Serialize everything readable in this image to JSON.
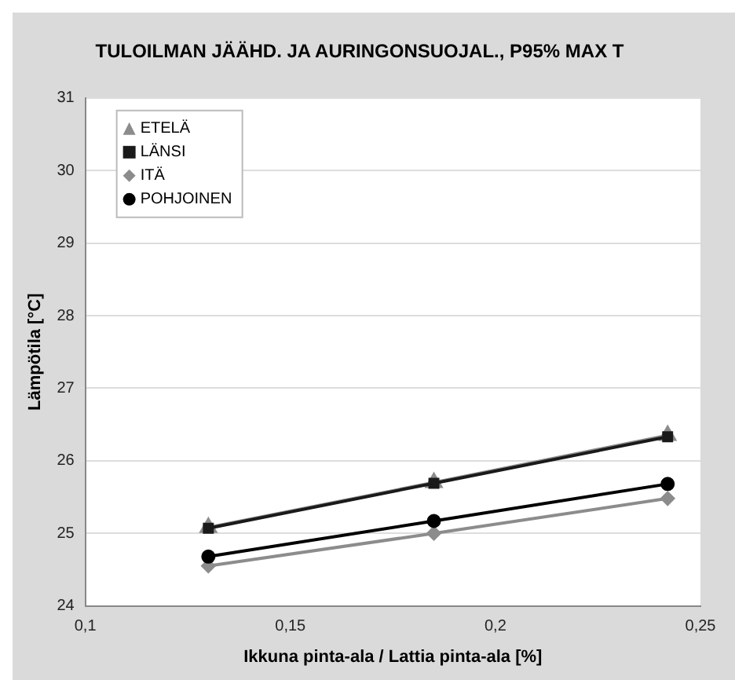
{
  "chart_data": {
    "type": "line",
    "title": "TULOILMAN JÄÄHD. JA AURINGONSUOJAL., P95% MAX T",
    "xlabel": "Ikkuna pinta-ala / Lattia pinta-ala [%]",
    "ylabel": "Lämpötila [°C]",
    "x": [
      0.13,
      0.185,
      0.242
    ],
    "series": [
      {
        "name": "ETELÄ",
        "color": "#8c8c8c",
        "marker": "triangle",
        "values": [
          25.08,
          25.7,
          26.35
        ]
      },
      {
        "name": "LÄNSI",
        "color": "#1a1a1a",
        "marker": "square",
        "values": [
          25.07,
          25.69,
          26.33
        ]
      },
      {
        "name": "ITÄ",
        "color": "#8c8c8c",
        "marker": "diamond",
        "values": [
          24.55,
          25.0,
          25.48
        ]
      },
      {
        "name": "POHJOINEN",
        "color": "#000000",
        "marker": "circle",
        "values": [
          24.68,
          25.17,
          25.68
        ]
      }
    ],
    "xlim": [
      0.1,
      0.25
    ],
    "xticks": [
      {
        "value": 0.1,
        "label": "0,1"
      },
      {
        "value": 0.15,
        "label": "0,15"
      },
      {
        "value": 0.2,
        "label": "0,2"
      },
      {
        "value": 0.25,
        "label": "0,25"
      }
    ],
    "ylim": [
      24,
      31
    ],
    "yticks": [
      24,
      25,
      26,
      27,
      28,
      29,
      30,
      31
    ],
    "grid": "y",
    "legend": "top left",
    "line_style": "solid"
  }
}
